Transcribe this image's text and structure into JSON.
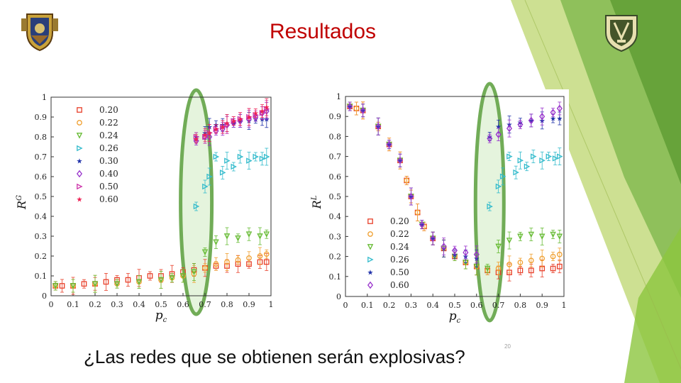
{
  "slide": {
    "title": "Resultados",
    "question": "¿Las redes que se obtienen serán explosivas?",
    "slide_number": "20",
    "colors": {
      "title": "#c00000",
      "accent_green": "#7ab648",
      "highlight_ellipse": "#6aa84f"
    }
  },
  "logos": {
    "left": "crest-logo",
    "right": "crest-logo"
  },
  "chart_data": [
    {
      "type": "scatter",
      "ylabel_main": "R",
      "ylabel_sup": "G",
      "xlabel_main": "p",
      "xlabel_sub": "c",
      "xlim": [
        0,
        1
      ],
      "ylim": [
        0,
        1
      ],
      "xticks": [
        0,
        0.1,
        0.2,
        0.3,
        0.4,
        0.5,
        0.6,
        0.7,
        0.8,
        0.9,
        1
      ],
      "xtick_labels": [
        "0",
        "0.1",
        "0.2",
        "0.3",
        "0.4",
        "0.5",
        "0.6",
        "0.7",
        "0.8",
        "0.9",
        "1"
      ],
      "yticks": [
        0,
        0.1,
        0.2,
        0.3,
        0.4,
        0.5,
        0.6,
        0.7,
        0.8,
        0.9,
        1
      ],
      "ytick_labels": [
        "0",
        "0.1",
        "0.2",
        "0.3",
        "0.4",
        "0.5",
        "0.6",
        "0.7",
        "0.8",
        "0.9",
        "1"
      ],
      "legend_position": "top-left",
      "highlight_x": 0.66,
      "series": [
        {
          "name": "0.20",
          "marker": "square",
          "color": "#e8402a",
          "x": [
            0.02,
            0.05,
            0.1,
            0.15,
            0.2,
            0.25,
            0.3,
            0.35,
            0.4,
            0.45,
            0.5,
            0.55,
            0.6,
            0.65,
            0.7,
            0.75,
            0.8,
            0.85,
            0.9,
            0.95,
            0.98
          ],
          "y": [
            0.05,
            0.05,
            0.05,
            0.06,
            0.06,
            0.07,
            0.08,
            0.08,
            0.09,
            0.1,
            0.1,
            0.11,
            0.12,
            0.13,
            0.14,
            0.15,
            0.15,
            0.16,
            0.16,
            0.17,
            0.17
          ]
        },
        {
          "name": "0.22",
          "marker": "circle",
          "color": "#f0a030",
          "x": [
            0.02,
            0.1,
            0.2,
            0.3,
            0.4,
            0.5,
            0.55,
            0.6,
            0.65,
            0.7,
            0.75,
            0.8,
            0.85,
            0.9,
            0.95,
            0.98
          ],
          "y": [
            0.05,
            0.05,
            0.06,
            0.06,
            0.07,
            0.08,
            0.09,
            0.1,
            0.11,
            0.14,
            0.16,
            0.17,
            0.18,
            0.19,
            0.2,
            0.21
          ]
        },
        {
          "name": "0.24",
          "marker": "triangle-down",
          "color": "#66bb33",
          "x": [
            0.02,
            0.1,
            0.2,
            0.3,
            0.4,
            0.5,
            0.55,
            0.6,
            0.65,
            0.7,
            0.75,
            0.8,
            0.85,
            0.9,
            0.95,
            0.98
          ],
          "y": [
            0.05,
            0.05,
            0.06,
            0.06,
            0.07,
            0.08,
            0.09,
            0.1,
            0.12,
            0.22,
            0.27,
            0.3,
            0.29,
            0.31,
            0.3,
            0.31
          ]
        },
        {
          "name": "0.26",
          "marker": "triangle-right",
          "color": "#33bbcc",
          "x": [
            0.66,
            0.7,
            0.72,
            0.75,
            0.78,
            0.8,
            0.83,
            0.86,
            0.9,
            0.93,
            0.96,
            0.98
          ],
          "y": [
            0.45,
            0.55,
            0.6,
            0.7,
            0.62,
            0.68,
            0.65,
            0.7,
            0.68,
            0.7,
            0.69,
            0.7
          ]
        },
        {
          "name": "0.30",
          "marker": "star",
          "color": "#2233aa",
          "x": [
            0.66,
            0.7,
            0.72,
            0.75,
            0.78,
            0.8,
            0.83,
            0.86,
            0.9,
            0.93,
            0.96,
            0.98
          ],
          "y": [
            0.8,
            0.82,
            0.85,
            0.86,
            0.86,
            0.87,
            0.87,
            0.88,
            0.88,
            0.89,
            0.89,
            0.89
          ]
        },
        {
          "name": "0.40",
          "marker": "diamond",
          "color": "#9933cc",
          "x": [
            0.66,
            0.7,
            0.72,
            0.75,
            0.78,
            0.8,
            0.83,
            0.86,
            0.9,
            0.93,
            0.96,
            0.98
          ],
          "y": [
            0.78,
            0.8,
            0.8,
            0.83,
            0.84,
            0.86,
            0.87,
            0.88,
            0.89,
            0.9,
            0.92,
            0.93
          ]
        },
        {
          "name": "0.50",
          "marker": "triangle-right",
          "color": "#cc33aa",
          "x": [
            0.66,
            0.7,
            0.72,
            0.75,
            0.78,
            0.8,
            0.83,
            0.86,
            0.9,
            0.93,
            0.96,
            0.98
          ],
          "y": [
            0.8,
            0.8,
            0.82,
            0.84,
            0.85,
            0.86,
            0.88,
            0.89,
            0.9,
            0.91,
            0.92,
            0.94
          ]
        },
        {
          "name": "0.60",
          "marker": "star",
          "color": "#ee2255",
          "x": [
            0.66,
            0.7,
            0.72,
            0.75,
            0.78,
            0.8,
            0.83,
            0.86,
            0.9,
            0.93,
            0.96,
            0.98
          ],
          "y": [
            0.79,
            0.81,
            0.82,
            0.84,
            0.85,
            0.87,
            0.88,
            0.89,
            0.9,
            0.92,
            0.93,
            0.95
          ]
        }
      ]
    },
    {
      "type": "scatter",
      "ylabel_main": "R",
      "ylabel_sup": "L",
      "xlabel_main": "p",
      "xlabel_sub": "c",
      "xlim": [
        0,
        1
      ],
      "ylim": [
        0,
        1
      ],
      "xticks": [
        0,
        0.1,
        0.2,
        0.3,
        0.4,
        0.5,
        0.6,
        0.7,
        0.8,
        0.9,
        1
      ],
      "xtick_labels": [
        "0",
        "0.1",
        "0.2",
        "0.3",
        "0.4",
        "0.5",
        "0.6",
        "0.7",
        "0.8",
        "0.9",
        "1"
      ],
      "yticks": [
        0,
        0.1,
        0.2,
        0.3,
        0.4,
        0.5,
        0.6,
        0.7,
        0.8,
        0.9,
        1
      ],
      "ytick_labels": [
        "0",
        "0.1",
        "0.2",
        "0.3",
        "0.4",
        "0.5",
        "0.6",
        "0.7",
        "0.8",
        "0.9",
        "1"
      ],
      "legend_position": "bottom-center",
      "highlight_x": 0.66,
      "series": [
        {
          "name": "0.20",
          "marker": "square",
          "color": "#e8402a",
          "x": [
            0.02,
            0.05,
            0.08,
            0.15,
            0.2,
            0.25,
            0.28,
            0.3,
            0.33,
            0.36,
            0.4,
            0.45,
            0.5,
            0.55,
            0.6,
            0.65,
            0.7,
            0.75,
            0.8,
            0.85,
            0.9,
            0.95,
            0.98
          ],
          "y": [
            0.95,
            0.94,
            0.93,
            0.85,
            0.76,
            0.68,
            0.58,
            0.5,
            0.42,
            0.35,
            0.29,
            0.24,
            0.2,
            0.17,
            0.15,
            0.13,
            0.12,
            0.12,
            0.13,
            0.13,
            0.14,
            0.14,
            0.15
          ]
        },
        {
          "name": "0.22",
          "marker": "circle",
          "color": "#f0a030",
          "x": [
            0.02,
            0.05,
            0.08,
            0.15,
            0.2,
            0.25,
            0.28,
            0.3,
            0.33,
            0.36,
            0.4,
            0.45,
            0.5,
            0.55,
            0.6,
            0.65,
            0.7,
            0.75,
            0.8,
            0.85,
            0.9,
            0.95,
            0.98
          ],
          "y": [
            0.95,
            0.94,
            0.93,
            0.85,
            0.76,
            0.68,
            0.58,
            0.5,
            0.42,
            0.35,
            0.29,
            0.24,
            0.2,
            0.17,
            0.15,
            0.13,
            0.14,
            0.16,
            0.17,
            0.18,
            0.19,
            0.2,
            0.21
          ]
        },
        {
          "name": "0.24",
          "marker": "triangle-down",
          "color": "#66bb33",
          "x": [
            0.02,
            0.08,
            0.15,
            0.2,
            0.25,
            0.3,
            0.35,
            0.4,
            0.45,
            0.5,
            0.55,
            0.6,
            0.65,
            0.7,
            0.75,
            0.8,
            0.85,
            0.9,
            0.95,
            0.98
          ],
          "y": [
            0.95,
            0.93,
            0.85,
            0.76,
            0.68,
            0.5,
            0.36,
            0.29,
            0.24,
            0.2,
            0.17,
            0.15,
            0.14,
            0.25,
            0.28,
            0.3,
            0.31,
            0.3,
            0.31,
            0.3
          ]
        },
        {
          "name": "0.26",
          "marker": "triangle-right",
          "color": "#33bbcc",
          "x": [
            0.66,
            0.7,
            0.72,
            0.75,
            0.78,
            0.8,
            0.83,
            0.86,
            0.9,
            0.93,
            0.96,
            0.98
          ],
          "y": [
            0.45,
            0.55,
            0.6,
            0.7,
            0.62,
            0.68,
            0.65,
            0.7,
            0.68,
            0.7,
            0.69,
            0.7
          ]
        },
        {
          "name": "0.50",
          "marker": "star",
          "color": "#2233aa",
          "x": [
            0.02,
            0.08,
            0.15,
            0.2,
            0.25,
            0.3,
            0.35,
            0.4,
            0.45,
            0.5,
            0.55,
            0.6,
            0.66,
            0.7,
            0.75,
            0.8,
            0.85,
            0.9,
            0.95,
            0.98
          ],
          "y": [
            0.95,
            0.93,
            0.85,
            0.76,
            0.68,
            0.5,
            0.36,
            0.29,
            0.24,
            0.21,
            0.2,
            0.19,
            0.8,
            0.85,
            0.86,
            0.87,
            0.88,
            0.88,
            0.89,
            0.89
          ]
        },
        {
          "name": "0.60",
          "marker": "diamond",
          "color": "#9933cc",
          "x": [
            0.02,
            0.08,
            0.15,
            0.2,
            0.25,
            0.3,
            0.35,
            0.4,
            0.45,
            0.5,
            0.55,
            0.6,
            0.66,
            0.7,
            0.75,
            0.8,
            0.85,
            0.9,
            0.95,
            0.98
          ],
          "y": [
            0.95,
            0.93,
            0.85,
            0.76,
            0.68,
            0.5,
            0.36,
            0.29,
            0.25,
            0.23,
            0.22,
            0.21,
            0.79,
            0.81,
            0.84,
            0.86,
            0.88,
            0.9,
            0.92,
            0.94
          ]
        }
      ]
    }
  ]
}
